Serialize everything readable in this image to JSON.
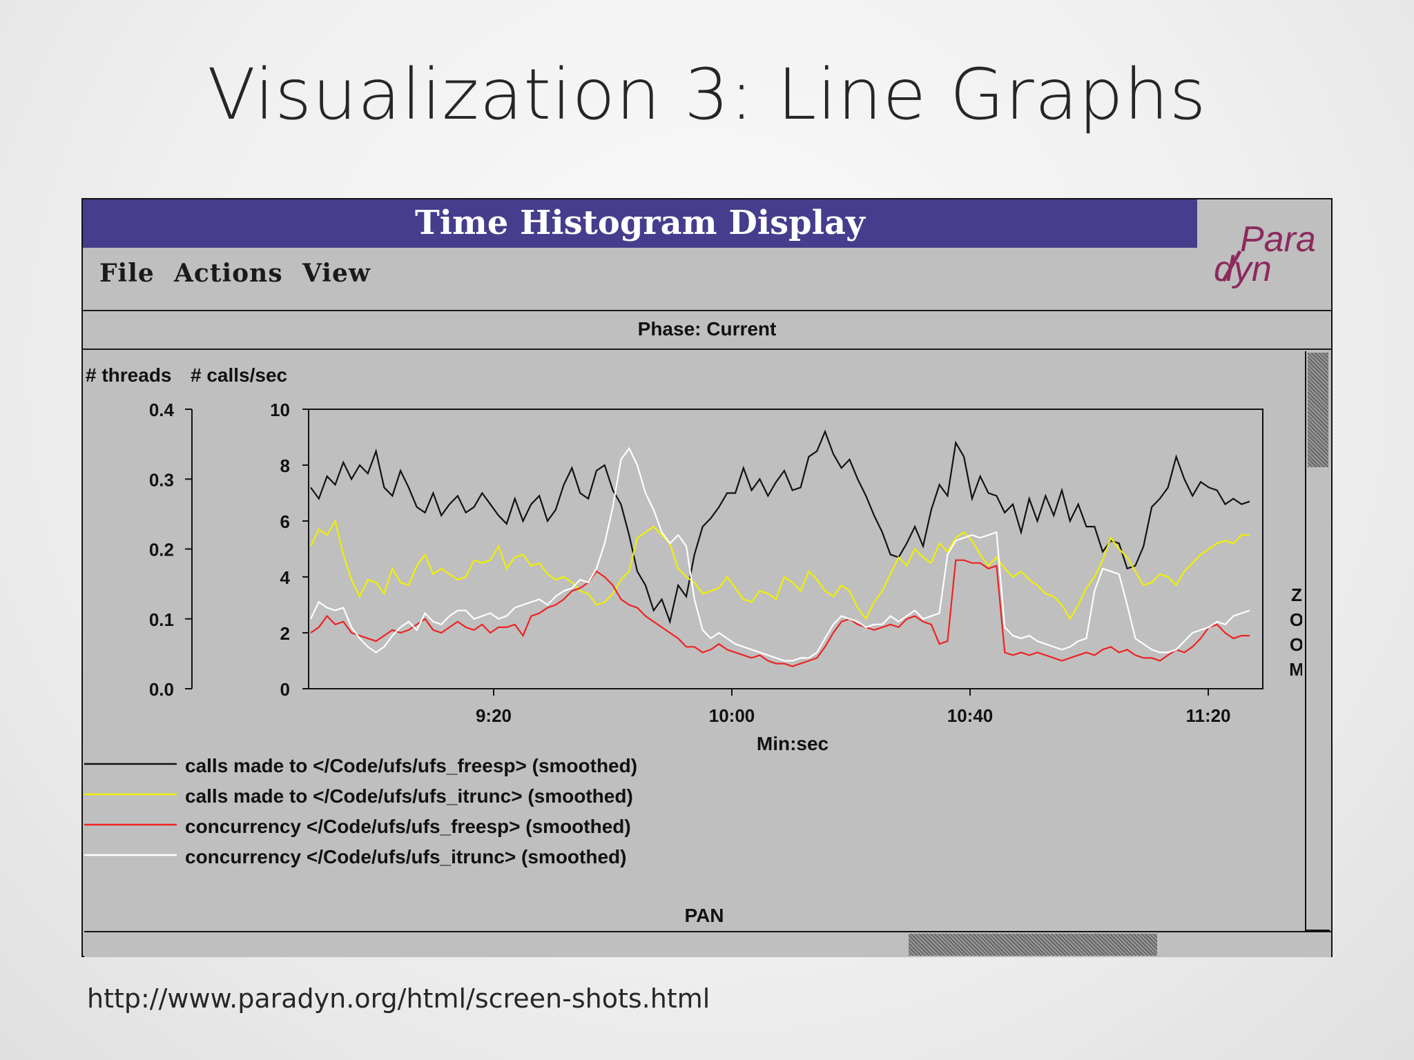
{
  "slide": {
    "title": "Visualization 3: Line Graphs",
    "source_url": "http://www.paradyn.org/html/screen-shots.html"
  },
  "window": {
    "title": "Time Histogram Display",
    "logo_text": [
      "Para",
      "dyn"
    ],
    "logo_color": "#8b2a5e",
    "titlebar_color": "#463d8d",
    "menu": [
      "File",
      "Actions",
      "View"
    ],
    "phase_label": "Phase: Current",
    "zoom_label": "ZOOM",
    "pan_label": "PAN"
  },
  "chart_data": {
    "type": "line",
    "xlabel": "Min:sec",
    "x_tick_labels": [
      "9:20",
      "10:00",
      "10:40",
      "11:20"
    ],
    "left_axis": {
      "label": "# threads",
      "ticks": [
        "0.0",
        "0.1",
        "0.2",
        "0.3",
        "0.4"
      ],
      "range": [
        0,
        0.4
      ]
    },
    "right_axis": {
      "label": "# calls/sec",
      "ticks": [
        "0",
        "2",
        "4",
        "6",
        "8",
        "10"
      ],
      "range": [
        0,
        10
      ]
    },
    "background": "#bfbfbf",
    "series": [
      {
        "name": "calls made to </Code/ufs/ufs_freesp> (smoothed)",
        "color": "#111111",
        "axis": "calls/sec",
        "values": [
          7.2,
          6.8,
          7.6,
          7.3,
          8.1,
          7.5,
          8.0,
          7.7,
          8.5,
          7.2,
          6.9,
          7.8,
          7.2,
          6.5,
          6.3,
          7.0,
          6.2,
          6.6,
          6.9,
          6.3,
          6.5,
          7.0,
          6.6,
          6.2,
          5.9,
          6.8,
          6.0,
          6.6,
          6.9,
          6.0,
          6.4,
          7.3,
          7.9,
          7.0,
          6.8,
          7.8,
          8.0,
          7.1,
          6.6,
          5.5,
          4.2,
          3.7,
          2.8,
          3.2,
          2.4,
          3.7,
          3.3,
          4.8,
          5.8,
          6.1,
          6.5,
          7.0,
          7.0,
          7.9,
          7.1,
          7.5,
          6.9,
          7.4,
          7.8,
          7.1,
          7.2,
          8.3,
          8.5,
          9.2,
          8.4,
          7.9,
          8.2,
          7.5,
          6.9,
          6.2,
          5.6,
          4.8,
          4.7,
          5.2,
          5.8,
          5.1,
          6.4,
          7.3,
          6.9,
          8.8,
          8.3,
          6.8,
          7.6,
          7.0,
          6.9,
          6.3,
          6.6,
          5.6,
          6.8,
          6.0,
          6.9,
          6.2,
          7.1,
          6.0,
          6.6,
          5.8,
          5.8,
          4.9,
          5.3,
          5.2,
          4.3,
          4.4,
          5.1,
          6.5,
          6.8,
          7.2,
          8.3,
          7.5,
          6.9,
          7.4,
          7.2,
          7.1,
          6.6,
          6.8,
          6.6,
          6.7
        ]
      },
      {
        "name": "calls made to </Code/ufs/ufs_itrunc> (smoothed)",
        "color": "#f0f000",
        "axis": "calls/sec",
        "values": [
          5.1,
          5.7,
          5.5,
          6.0,
          4.8,
          3.9,
          3.3,
          3.9,
          3.8,
          3.4,
          4.3,
          3.8,
          3.7,
          4.4,
          4.8,
          4.1,
          4.3,
          4.1,
          3.9,
          4.0,
          4.6,
          4.5,
          4.6,
          5.1,
          4.3,
          4.7,
          4.8,
          4.4,
          4.5,
          4.1,
          3.9,
          4.0,
          3.8,
          3.5,
          3.4,
          3.0,
          3.1,
          3.4,
          3.9,
          4.2,
          5.4,
          5.6,
          5.8,
          5.5,
          5.2,
          4.3,
          4.0,
          3.8,
          3.4,
          3.5,
          3.6,
          4.0,
          3.6,
          3.2,
          3.1,
          3.5,
          3.4,
          3.2,
          4.0,
          3.8,
          3.5,
          4.2,
          3.9,
          3.5,
          3.3,
          3.7,
          3.5,
          2.9,
          2.5,
          3.1,
          3.5,
          4.1,
          4.7,
          4.4,
          5.0,
          4.7,
          4.5,
          5.2,
          4.9,
          5.4,
          5.6,
          5.3,
          4.8,
          4.4,
          4.7,
          4.3,
          4.0,
          4.2,
          3.9,
          3.7,
          3.4,
          3.3,
          3.0,
          2.5,
          3.0,
          3.6,
          4.0,
          4.6,
          5.4,
          5.0,
          4.7,
          4.2,
          3.7,
          3.8,
          4.1,
          4.0,
          3.7,
          4.2,
          4.5,
          4.8,
          5.0,
          5.2,
          5.3,
          5.2,
          5.5,
          5.5
        ]
      },
      {
        "name": "concurrency </Code/ufs/ufs_freesp> (smoothed)",
        "color": "#ee2222",
        "axis": "calls/sec",
        "values": [
          2.0,
          2.2,
          2.6,
          2.3,
          2.4,
          2.0,
          1.9,
          1.8,
          1.7,
          1.9,
          2.1,
          2.0,
          2.1,
          2.3,
          2.5,
          2.1,
          2.0,
          2.2,
          2.4,
          2.2,
          2.1,
          2.3,
          2.0,
          2.2,
          2.2,
          2.3,
          1.9,
          2.6,
          2.7,
          2.9,
          3.0,
          3.2,
          3.5,
          3.6,
          3.8,
          4.2,
          4.0,
          3.7,
          3.2,
          3.0,
          2.9,
          2.6,
          2.4,
          2.2,
          2.0,
          1.8,
          1.5,
          1.5,
          1.3,
          1.4,
          1.6,
          1.4,
          1.3,
          1.2,
          1.1,
          1.2,
          1.0,
          0.9,
          0.9,
          0.8,
          0.9,
          1.0,
          1.1,
          1.5,
          2.0,
          2.4,
          2.5,
          2.3,
          2.2,
          2.1,
          2.2,
          2.3,
          2.2,
          2.5,
          2.6,
          2.4,
          2.3,
          1.6,
          1.7,
          4.6,
          4.6,
          4.5,
          4.5,
          4.3,
          4.4,
          1.3,
          1.2,
          1.3,
          1.2,
          1.3,
          1.2,
          1.1,
          1.0,
          1.1,
          1.2,
          1.3,
          1.2,
          1.4,
          1.5,
          1.3,
          1.4,
          1.2,
          1.1,
          1.1,
          1.0,
          1.2,
          1.4,
          1.3,
          1.5,
          1.8,
          2.2,
          2.3,
          2.0,
          1.8,
          1.9,
          1.9
        ]
      },
      {
        "name": "concurrency </Code/ufs/ufs_itrunc> (smoothed)",
        "color": "#ffffff",
        "axis": "calls/sec",
        "values": [
          2.5,
          3.1,
          2.9,
          2.8,
          2.9,
          2.2,
          1.8,
          1.5,
          1.3,
          1.5,
          1.9,
          2.2,
          2.4,
          2.1,
          2.7,
          2.4,
          2.3,
          2.6,
          2.8,
          2.8,
          2.5,
          2.6,
          2.7,
          2.5,
          2.6,
          2.9,
          3.0,
          3.1,
          3.2,
          3.0,
          3.3,
          3.5,
          3.6,
          3.9,
          3.8,
          4.3,
          5.2,
          6.5,
          8.2,
          8.6,
          8.0,
          7.0,
          6.4,
          5.6,
          5.2,
          5.5,
          5.1,
          3.2,
          2.1,
          1.8,
          2.0,
          1.8,
          1.6,
          1.5,
          1.4,
          1.3,
          1.2,
          1.1,
          1.0,
          1.0,
          1.1,
          1.1,
          1.3,
          1.8,
          2.3,
          2.6,
          2.5,
          2.4,
          2.2,
          2.3,
          2.3,
          2.6,
          2.4,
          2.6,
          2.8,
          2.5,
          2.6,
          2.7,
          4.8,
          5.3,
          5.4,
          5.5,
          5.4,
          5.5,
          5.6,
          2.2,
          1.9,
          1.8,
          1.9,
          1.7,
          1.6,
          1.5,
          1.4,
          1.5,
          1.7,
          1.8,
          3.5,
          4.3,
          4.2,
          4.1,
          3.0,
          1.8,
          1.6,
          1.4,
          1.3,
          1.3,
          1.4,
          1.7,
          2.0,
          2.1,
          2.2,
          2.4,
          2.3,
          2.6,
          2.7,
          2.8
        ]
      }
    ]
  }
}
